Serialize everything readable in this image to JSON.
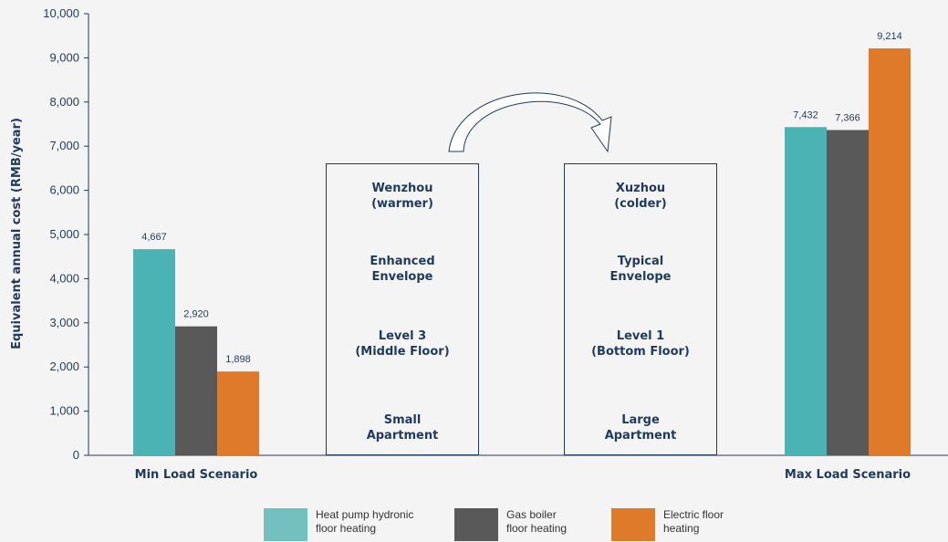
{
  "chart_data": {
    "type": "bar",
    "ylabel": "Equivalent annual cost (RMB/year)",
    "ylim": [
      0,
      10000
    ],
    "yticks": [
      "0",
      "1,000",
      "2,000",
      "3,000",
      "4,000",
      "5,000",
      "6,000",
      "7,000",
      "8,000",
      "9,000",
      "10,000"
    ],
    "categories": [
      "Min Load Scenario",
      "Max Load Scenario"
    ],
    "series": [
      {
        "name": "Heat pump hydronic\nfloor heating",
        "color": "#4bb3b3",
        "values": [
          4667,
          7432
        ],
        "labels": [
          "4,667",
          "7,432"
        ]
      },
      {
        "name": "Gas boiler\nfloor heating",
        "color": "#595959",
        "values": [
          2920,
          7366
        ],
        "labels": [
          "2,920",
          "7,366"
        ]
      },
      {
        "name": "Electric floor\nheating",
        "color": "#e07a2b",
        "values": [
          1898,
          9214
        ],
        "labels": [
          "1,898",
          "9,214"
        ]
      }
    ],
    "grid": false,
    "legend_position": "bottom"
  },
  "boxes": {
    "left": [
      "Wenzhou\n(warmer)",
      "Enhanced\nEnvelope",
      "Level 3\n(Middle Floor)",
      "Small\nApartment"
    ],
    "right": [
      "Xuzhou\n(colder)",
      "Typical\nEnvelope",
      "Level 1\n(Bottom Floor)",
      "Large\nApartment"
    ]
  },
  "legend": {
    "items": [
      {
        "label": "Heat pump hydronic\nfloor heating",
        "color": "#74c0bf"
      },
      {
        "label": "Gas boiler\nfloor heating",
        "color": "#595959"
      },
      {
        "label": "Electric floor\nheating",
        "color": "#e07a2b"
      }
    ]
  }
}
